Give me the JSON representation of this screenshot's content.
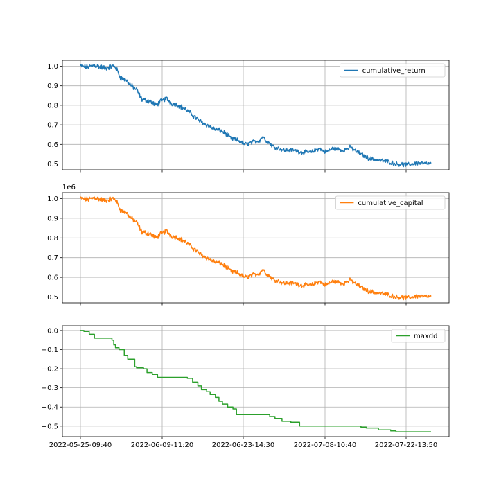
{
  "chart_data": [
    {
      "type": "line",
      "x_tick_labels": [
        "2022-05-25-09:40",
        "2022-06-09-11:20",
        "2022-06-23-14:30",
        "2022-07-08-10:40",
        "2022-07-22-13:50"
      ],
      "yticks": [
        "0.5",
        "0.6",
        "0.7",
        "0.8",
        "0.9",
        "1.0"
      ],
      "ylim": [
        0.47,
        1.03
      ],
      "offset_label": "",
      "grid": true,
      "legend_position": "top-right",
      "series": [
        {
          "name": "cumulative_return",
          "color": "#1f77b4",
          "anchors": [
            [
              0,
              1.0
            ],
            [
              0.02,
              0.995
            ],
            [
              0.04,
              1.005
            ],
            [
              0.07,
              0.99
            ],
            [
              0.09,
              1.0
            ],
            [
              0.1,
              0.995
            ],
            [
              0.115,
              0.94
            ],
            [
              0.13,
              0.93
            ],
            [
              0.145,
              0.9
            ],
            [
              0.16,
              0.88
            ],
            [
              0.175,
              0.83
            ],
            [
              0.2,
              0.82
            ],
            [
              0.215,
              0.8
            ],
            [
              0.225,
              0.815
            ],
            [
              0.245,
              0.835
            ],
            [
              0.26,
              0.81
            ],
            [
              0.28,
              0.8
            ],
            [
              0.3,
              0.78
            ],
            [
              0.32,
              0.75
            ],
            [
              0.34,
              0.72
            ],
            [
              0.36,
              0.7
            ],
            [
              0.38,
              0.68
            ],
            [
              0.4,
              0.67
            ],
            [
              0.415,
              0.655
            ],
            [
              0.43,
              0.63
            ],
            [
              0.45,
              0.62
            ],
            [
              0.47,
              0.6
            ],
            [
              0.49,
              0.61
            ],
            [
              0.51,
              0.62
            ],
            [
              0.52,
              0.64
            ],
            [
              0.53,
              0.62
            ],
            [
              0.55,
              0.59
            ],
            [
              0.58,
              0.57
            ],
            [
              0.61,
              0.57
            ],
            [
              0.63,
              0.56
            ],
            [
              0.66,
              0.56
            ],
            [
              0.68,
              0.58
            ],
            [
              0.7,
              0.56
            ],
            [
              0.72,
              0.58
            ],
            [
              0.75,
              0.57
            ],
            [
              0.77,
              0.585
            ],
            [
              0.79,
              0.56
            ],
            [
              0.82,
              0.53
            ],
            [
              0.85,
              0.52
            ],
            [
              0.88,
              0.51
            ],
            [
              0.9,
              0.5
            ],
            [
              0.93,
              0.495
            ],
            [
              0.96,
              0.505
            ],
            [
              1.0,
              0.5
            ]
          ]
        }
      ]
    },
    {
      "type": "line",
      "x_tick_labels": [
        "2022-05-25-09:40",
        "2022-06-09-11:20",
        "2022-06-23-14:30",
        "2022-07-08-10:40",
        "2022-07-22-13:50"
      ],
      "yticks": [
        "0.5",
        "0.6",
        "0.7",
        "0.8",
        "0.9",
        "1.0"
      ],
      "ylim": [
        0.47,
        1.03
      ],
      "offset_label": "1e6",
      "grid": true,
      "legend_position": "top-right",
      "series": [
        {
          "name": "cumulative_capital",
          "color": "#ff7f0e",
          "anchors": [
            [
              0,
              1.0
            ],
            [
              0.02,
              0.995
            ],
            [
              0.04,
              1.005
            ],
            [
              0.07,
              0.99
            ],
            [
              0.09,
              1.0
            ],
            [
              0.1,
              0.995
            ],
            [
              0.115,
              0.94
            ],
            [
              0.13,
              0.93
            ],
            [
              0.145,
              0.9
            ],
            [
              0.16,
              0.88
            ],
            [
              0.175,
              0.83
            ],
            [
              0.2,
              0.82
            ],
            [
              0.215,
              0.8
            ],
            [
              0.225,
              0.815
            ],
            [
              0.245,
              0.835
            ],
            [
              0.26,
              0.81
            ],
            [
              0.28,
              0.8
            ],
            [
              0.3,
              0.78
            ],
            [
              0.32,
              0.75
            ],
            [
              0.34,
              0.72
            ],
            [
              0.36,
              0.7
            ],
            [
              0.38,
              0.68
            ],
            [
              0.4,
              0.67
            ],
            [
              0.415,
              0.655
            ],
            [
              0.43,
              0.63
            ],
            [
              0.45,
              0.62
            ],
            [
              0.47,
              0.6
            ],
            [
              0.49,
              0.61
            ],
            [
              0.51,
              0.62
            ],
            [
              0.52,
              0.64
            ],
            [
              0.53,
              0.62
            ],
            [
              0.55,
              0.59
            ],
            [
              0.58,
              0.57
            ],
            [
              0.61,
              0.57
            ],
            [
              0.63,
              0.56
            ],
            [
              0.66,
              0.56
            ],
            [
              0.68,
              0.58
            ],
            [
              0.7,
              0.56
            ],
            [
              0.72,
              0.58
            ],
            [
              0.75,
              0.57
            ],
            [
              0.77,
              0.585
            ],
            [
              0.79,
              0.56
            ],
            [
              0.82,
              0.53
            ],
            [
              0.85,
              0.52
            ],
            [
              0.88,
              0.51
            ],
            [
              0.9,
              0.5
            ],
            [
              0.93,
              0.495
            ],
            [
              0.96,
              0.505
            ],
            [
              1.0,
              0.5
            ]
          ]
        }
      ]
    },
    {
      "type": "line",
      "x_tick_labels": [
        "2022-05-25-09:40",
        "2022-06-09-11:20",
        "2022-06-23-14:30",
        "2022-07-08-10:40",
        "2022-07-22-13:50"
      ],
      "yticks": [
        "−0.5",
        "−0.4",
        "−0.3",
        "−0.2",
        "−0.1",
        "0.0"
      ],
      "ytick_values": [
        -0.5,
        -0.4,
        -0.3,
        -0.2,
        -0.1,
        0.0
      ],
      "ylim": [
        -0.555,
        0.025
      ],
      "offset_label": "",
      "grid": true,
      "legend_position": "top-right",
      "series": [
        {
          "name": "maxdd",
          "color": "#2ca02c",
          "steps": [
            [
              0,
              0.0
            ],
            [
              0.01,
              -0.005
            ],
            [
              0.025,
              -0.02
            ],
            [
              0.04,
              -0.04
            ],
            [
              0.09,
              -0.05
            ],
            [
              0.095,
              -0.075
            ],
            [
              0.1,
              -0.09
            ],
            [
              0.11,
              -0.1
            ],
            [
              0.125,
              -0.13
            ],
            [
              0.135,
              -0.15
            ],
            [
              0.155,
              -0.19
            ],
            [
              0.16,
              -0.195
            ],
            [
              0.18,
              -0.2
            ],
            [
              0.19,
              -0.22
            ],
            [
              0.205,
              -0.23
            ],
            [
              0.22,
              -0.245
            ],
            [
              0.305,
              -0.25
            ],
            [
              0.32,
              -0.27
            ],
            [
              0.335,
              -0.29
            ],
            [
              0.345,
              -0.31
            ],
            [
              0.36,
              -0.32
            ],
            [
              0.37,
              -0.335
            ],
            [
              0.385,
              -0.35
            ],
            [
              0.395,
              -0.37
            ],
            [
              0.405,
              -0.385
            ],
            [
              0.42,
              -0.4
            ],
            [
              0.435,
              -0.41
            ],
            [
              0.445,
              -0.44
            ],
            [
              0.54,
              -0.45
            ],
            [
              0.555,
              -0.46
            ],
            [
              0.575,
              -0.475
            ],
            [
              0.6,
              -0.48
            ],
            [
              0.625,
              -0.5
            ],
            [
              0.8,
              -0.505
            ],
            [
              0.815,
              -0.51
            ],
            [
              0.85,
              -0.52
            ],
            [
              0.885,
              -0.525
            ],
            [
              0.9,
              -0.53
            ],
            [
              1.0,
              -0.53
            ]
          ]
        }
      ]
    }
  ]
}
